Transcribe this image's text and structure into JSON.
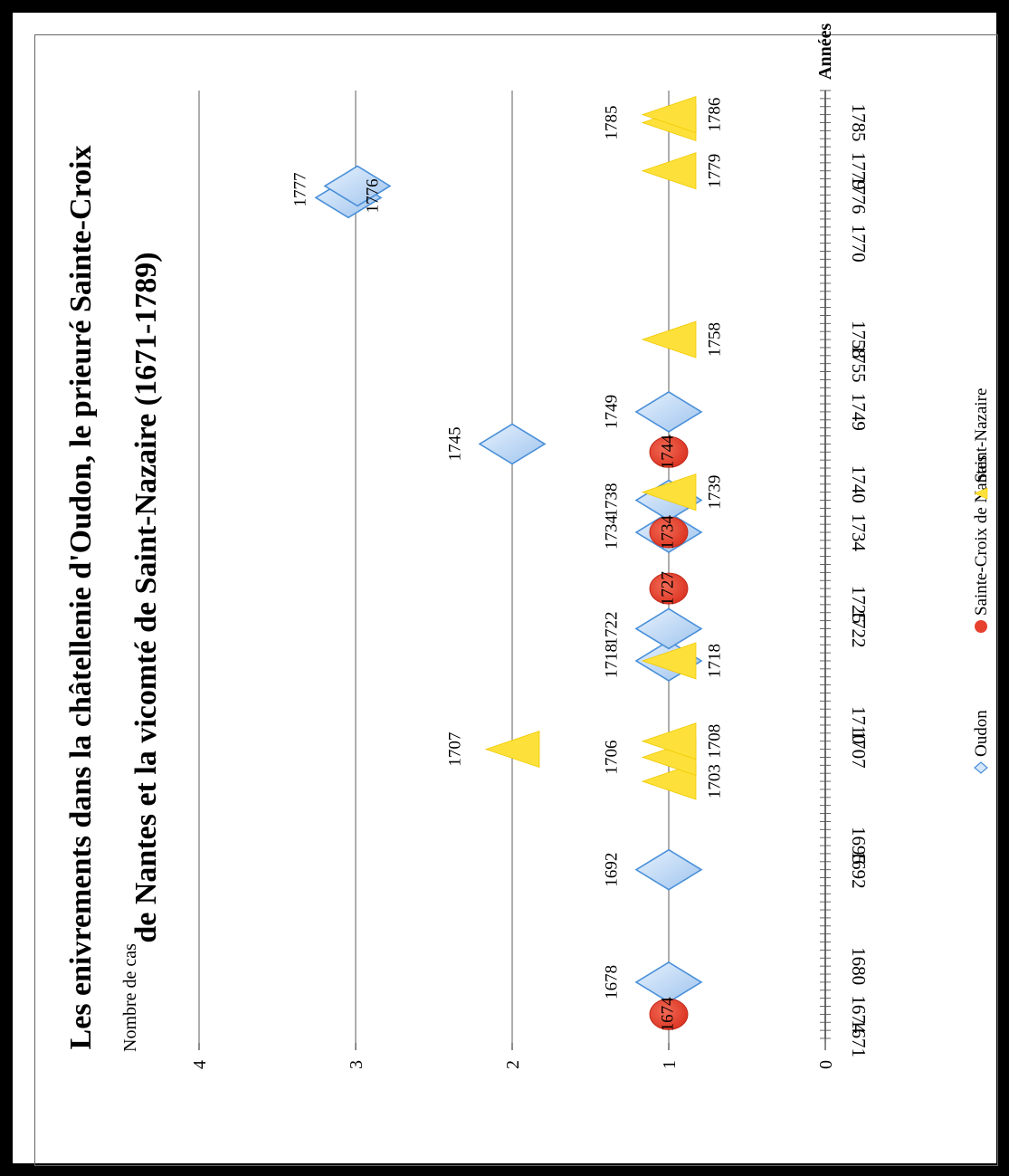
{
  "chart_data": {
    "type": "scatter",
    "title_line1": "Les enivrements dans la châtellenie d'Oudon, le prieuré Sainte-Croix",
    "title_line2": "de Nantes et la vicomté de Saint-Nazaire (1671-1789)",
    "ylabel": "Nombre de cas",
    "xlabel": "Années",
    "ylim": [
      0,
      4
    ],
    "yticks": [
      "0",
      "1",
      "2",
      "3",
      "4"
    ],
    "xlim": [
      1671,
      1789
    ],
    "xticks": [
      1671,
      1674,
      1680,
      1692,
      1695,
      1707,
      1710,
      1722,
      1725,
      1734,
      1740,
      1749,
      1755,
      1758,
      1770,
      1776,
      1779,
      1785
    ],
    "legend_position": "bottom",
    "series": [
      {
        "name": "Oudon",
        "marker": "diamond",
        "color": "#bcd7f5",
        "points": [
          {
            "x": 1678,
            "y": 1,
            "label": "1678"
          },
          {
            "x": 1692,
            "y": 1,
            "label": "1692"
          },
          {
            "x": 1718,
            "y": 1,
            "label": "1718"
          },
          {
            "x": 1722,
            "y": 1,
            "label": "1722"
          },
          {
            "x": 1734,
            "y": 1,
            "label": "1734"
          },
          {
            "x": 1738,
            "y": 1,
            "label": "1738"
          },
          {
            "x": 1745,
            "y": 2,
            "label": "1745"
          },
          {
            "x": 1749,
            "y": 1,
            "label": "1749"
          },
          {
            "x": 1776,
            "y": 3,
            "label": "1776"
          },
          {
            "x": 1777,
            "y": 3,
            "label": "1777"
          }
        ]
      },
      {
        "name": "Sainte-Croix de Nantes",
        "marker": "circle",
        "color": "#e8402e",
        "points": [
          {
            "x": 1674,
            "y": 1,
            "label": "1674"
          },
          {
            "x": 1727,
            "y": 1,
            "label": "1727"
          },
          {
            "x": 1734,
            "y": 1,
            "label": "1734"
          },
          {
            "x": 1744,
            "y": 1,
            "label": "1744"
          }
        ]
      },
      {
        "name": "Saint-Nazaire",
        "marker": "triangle",
        "color": "#fde13a",
        "points": [
          {
            "x": 1703,
            "y": 1,
            "label": "1703"
          },
          {
            "x": 1706,
            "y": 1,
            "label": "1706"
          },
          {
            "x": 1707,
            "y": 2,
            "label": "1707"
          },
          {
            "x": 1708,
            "y": 1,
            "label": "1708"
          },
          {
            "x": 1718,
            "y": 1,
            "label": "1718"
          },
          {
            "x": 1739,
            "y": 1,
            "label": "1739"
          },
          {
            "x": 1758,
            "y": 1,
            "label": "1758"
          },
          {
            "x": 1779,
            "y": 1,
            "label": "1779"
          },
          {
            "x": 1785,
            "y": 1,
            "label": "1785"
          },
          {
            "x": 1786,
            "y": 1,
            "label": "1786"
          }
        ]
      }
    ]
  }
}
